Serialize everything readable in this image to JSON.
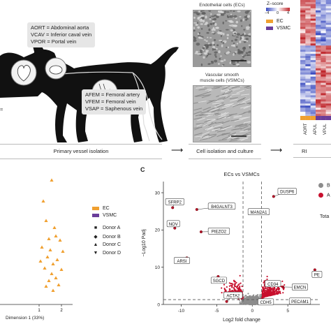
{
  "panel_a": {
    "callouts": {
      "top": [
        "AORT = Abdominal aorta",
        "VCAV = Inferior caval vein",
        "VPOR = Portal vein"
      ],
      "bottom": [
        "AFEM = Femoral artery",
        "VFEM = Femoral vein",
        "VSAP = Saphenous vein"
      ]
    },
    "partial_left": "≈",
    "micrographs": {
      "ec_caption": "Endothelial cells (ECs)",
      "vsmc_caption_1": "Vascular smooth",
      "vsmc_caption_2": "muscle cells (VSMCs)"
    },
    "heatmap": {
      "zscore_label": "Z–score",
      "ticks": [
        "−4",
        "0",
        "4"
      ],
      "legend": [
        {
          "label": "EC",
          "color": "#f0a030"
        },
        {
          "label": "VSMC",
          "color": "#6a3d9a"
        }
      ],
      "column_labels": [
        "AORT",
        "APUL",
        "VPUL"
      ]
    },
    "steps": {
      "step1": "Primary vessel isolation",
      "step2": "Cell isolation and culture",
      "step3": "RI"
    }
  },
  "panel_b": {
    "legend": [
      {
        "label": "EC",
        "color": "#f0a030"
      },
      {
        "label": "VSMC",
        "color": "#6a3d9a"
      }
    ],
    "donors": [
      {
        "label": "Donor A",
        "marker": "■"
      },
      {
        "label": "Donor B",
        "marker": "◆"
      },
      {
        "label": "Donor C",
        "marker": "▲"
      },
      {
        "label": "Donor D",
        "marker": "▼"
      }
    ],
    "xlabel": "Dimension 1 (33%)",
    "xticks": [
      "1",
      "2"
    ]
  },
  "panel_c": {
    "letter": "C",
    "legend_partial": [
      "B",
      "A"
    ],
    "side_partial": "Tota",
    "chart_data": {
      "type": "scatter",
      "title": "ECs vs VSMCs",
      "xlabel": "Log2 fold change",
      "ylabel": "−Log10 Padj",
      "xlim": [
        -12.5,
        9.5
      ],
      "ylim": [
        0,
        33
      ],
      "xticks": [
        -10,
        -5,
        0,
        5
      ],
      "yticks": [
        0,
        10,
        20,
        30
      ],
      "fc_threshold": [
        -1.3,
        1.3
      ],
      "p_threshold": 1.3,
      "grid": false,
      "labeled_genes": [
        {
          "gene": "SFRP2",
          "x": -11.2,
          "y": 26
        },
        {
          "gene": "B4GALNT3",
          "x": -7.8,
          "y": 25.5
        },
        {
          "gene": "NOV",
          "x": -10.9,
          "y": 20.5
        },
        {
          "gene": "PIEZO2",
          "x": -7.2,
          "y": 19.5
        },
        {
          "gene": "ARSI",
          "x": -9.2,
          "y": 12.5
        },
        {
          "gene": "SGCD",
          "x": -4.8,
          "y": 7.5
        },
        {
          "gene": "ACTA2",
          "x": -3.6,
          "y": 0.8
        },
        {
          "gene": "DUSP6",
          "x": 3.0,
          "y": 29
        },
        {
          "gene": "MAN2A1",
          "x": 1.8,
          "y": 25.2
        },
        {
          "gene": "CD34",
          "x": 3.6,
          "y": 5.6
        },
        {
          "gene": "EMCN",
          "x": 4.3,
          "y": 4.7
        },
        {
          "gene": "CDH5",
          "x": 2.6,
          "y": 1.0
        },
        {
          "gene": "PECAM1",
          "x": 6.0,
          "y": 1.4
        },
        {
          "gene": "PE",
          "x": 8.8,
          "y": 9.3
        }
      ]
    }
  }
}
